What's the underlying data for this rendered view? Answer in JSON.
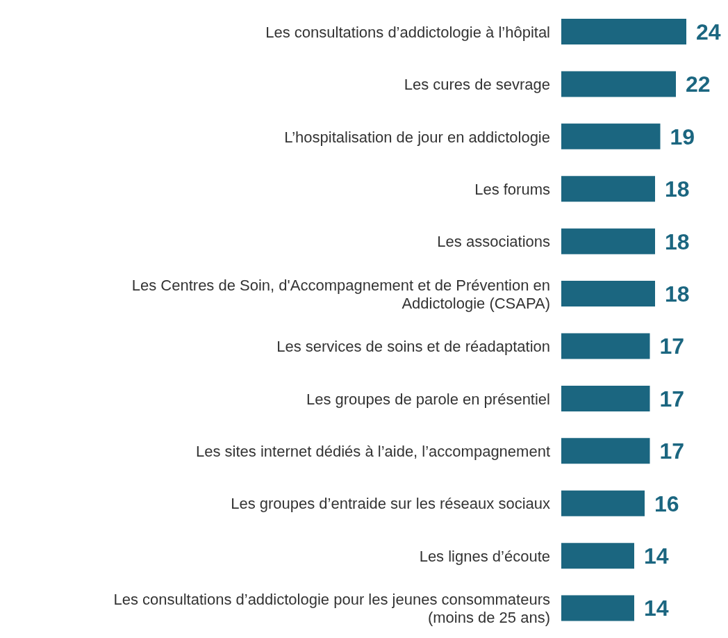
{
  "chart_data": {
    "type": "bar",
    "orientation": "horizontal",
    "data_labels": true,
    "color": "#1b6680",
    "categories": [
      "Les consultations d’addictologie à l’hôpital",
      "Les cures de sevrage",
      "L’hospitalisation de jour en addictologie",
      "Les forums",
      "Les associations",
      "Les Centres de Soin, d'Accompagnement et de Prévention en Addictologie (CSAPA)",
      "Les services de soins et de réadaptation",
      "Les groupes de parole en présentiel",
      "Les sites internet dédiés à l’aide, l’accompagnement",
      "Les groupes d’entraide sur les réseaux sociaux",
      "Les lignes d’écoute",
      "Les consultations d’addictologie pour les jeunes consommateurs (moins de 25 ans)"
    ],
    "values": [
      24,
      22,
      19,
      18,
      18,
      18,
      17,
      17,
      17,
      16,
      14,
      14
    ]
  }
}
